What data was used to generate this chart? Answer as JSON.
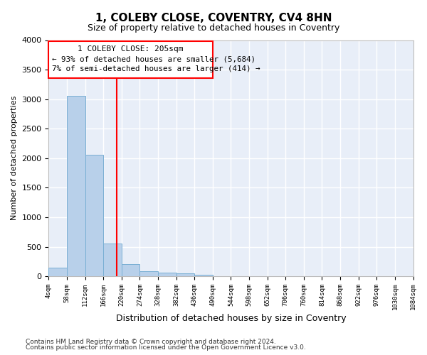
{
  "title": "1, COLEBY CLOSE, COVENTRY, CV4 8HN",
  "subtitle": "Size of property relative to detached houses in Coventry",
  "xlabel": "Distribution of detached houses by size in Coventry",
  "ylabel": "Number of detached properties",
  "property_size": 205,
  "annotation_line1": "1 COLEBY CLOSE: 205sqm",
  "annotation_line2": "← 93% of detached houses are smaller (5,684)",
  "annotation_line3": "7% of semi-detached houses are larger (414) →",
  "bar_color": "#b8d0ea",
  "bar_edge_color": "#7aafd4",
  "vline_color": "red",
  "bin_edges": [
    4,
    58,
    112,
    166,
    220,
    274,
    328,
    382,
    436,
    490,
    544,
    598,
    652,
    706,
    760,
    814,
    868,
    922,
    976,
    1030,
    1084
  ],
  "bar_heights": [
    140,
    3060,
    2060,
    560,
    200,
    80,
    60,
    50,
    30,
    0,
    0,
    0,
    0,
    0,
    0,
    0,
    0,
    0,
    0,
    0
  ],
  "tick_labels": [
    "4sqm",
    "58sqm",
    "112sqm",
    "166sqm",
    "220sqm",
    "274sqm",
    "328sqm",
    "382sqm",
    "436sqm",
    "490sqm",
    "544sqm",
    "598sqm",
    "652sqm",
    "706sqm",
    "760sqm",
    "814sqm",
    "868sqm",
    "922sqm",
    "976sqm",
    "1030sqm",
    "1084sqm"
  ],
  "ylim": [
    0,
    4000
  ],
  "background_color": "#e8eef8",
  "grid_color": "#ffffff",
  "fig_bg": "#ffffff",
  "footnote_line1": "Contains HM Land Registry data © Crown copyright and database right 2024.",
  "footnote_line2": "Contains public sector information licensed under the Open Government Licence v3.0."
}
